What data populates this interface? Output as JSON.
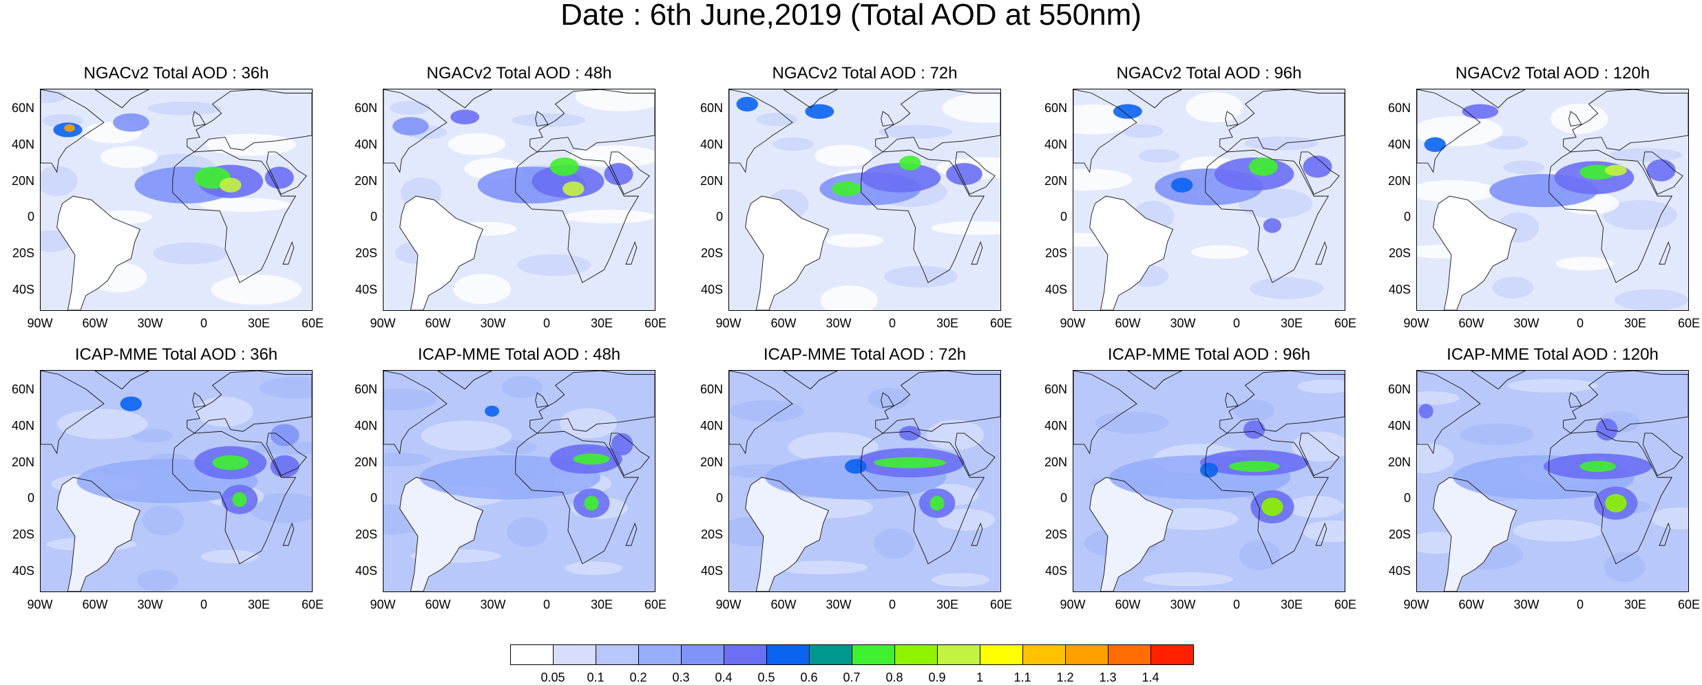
{
  "title": "Date : 6th June,2019 (Total AOD at 550nm)",
  "panels": [
    {
      "title": "NGACv2 Total AOD : 36h"
    },
    {
      "title": "NGACv2 Total AOD : 48h"
    },
    {
      "title": "NGACv2 Total AOD : 72h"
    },
    {
      "title": "NGACv2 Total AOD : 96h"
    },
    {
      "title": "NGACv2 Total AOD : 120h"
    },
    {
      "title": "ICAP-MME Total AOD : 36h"
    },
    {
      "title": "ICAP-MME Total AOD : 48h"
    },
    {
      "title": "ICAP-MME Total AOD : 72h"
    },
    {
      "title": "ICAP-MME Total AOD : 96h"
    },
    {
      "title": "ICAP-MME Total AOD : 120h"
    }
  ],
  "lat_ticks": [
    "60N",
    "40N",
    "20N",
    "0",
    "20S",
    "40S"
  ],
  "lon_ticks": [
    "90W",
    "60W",
    "30W",
    "0",
    "30E",
    "60E"
  ],
  "colorbar": {
    "colors": [
      "#ffffff",
      "#d6defc",
      "#b7c6fb",
      "#96adfa",
      "#8093f8",
      "#6a6ff4",
      "#0a64f0",
      "#00978f",
      "#3ff02e",
      "#8ef200",
      "#c3f240",
      "#ffff00",
      "#ffc200",
      "#ff9f00",
      "#ff6c00",
      "#ff2000"
    ],
    "labels": [
      "0.05",
      "0.1",
      "0.2",
      "0.3",
      "0.4",
      "0.5",
      "0.6",
      "0.7",
      "0.8",
      "0.9",
      "1",
      "1.1",
      "1.2",
      "1.3",
      "1.4"
    ]
  }
}
